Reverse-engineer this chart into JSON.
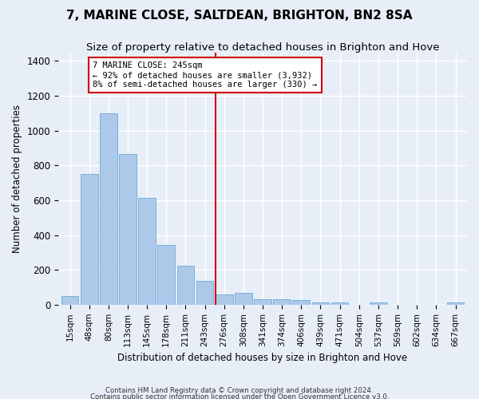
{
  "title": "7, MARINE CLOSE, SALTDEAN, BRIGHTON, BN2 8SA",
  "subtitle": "Size of property relative to detached houses in Brighton and Hove",
  "xlabel": "Distribution of detached houses by size in Brighton and Hove",
  "ylabel": "Number of detached properties",
  "footnote1": "Contains HM Land Registry data © Crown copyright and database right 2024.",
  "footnote2": "Contains public sector information licensed under the Open Government Licence v3.0.",
  "bar_labels": [
    "15sqm",
    "48sqm",
    "80sqm",
    "113sqm",
    "145sqm",
    "178sqm",
    "211sqm",
    "243sqm",
    "276sqm",
    "308sqm",
    "341sqm",
    "374sqm",
    "406sqm",
    "439sqm",
    "471sqm",
    "504sqm",
    "537sqm",
    "569sqm",
    "602sqm",
    "634sqm",
    "667sqm"
  ],
  "bar_values": [
    50,
    750,
    1100,
    865,
    615,
    345,
    225,
    135,
    60,
    70,
    30,
    30,
    25,
    15,
    15,
    0,
    12,
    0,
    0,
    0,
    12
  ],
  "bar_color": "#adc9ea",
  "bar_edge_color": "#6aaad4",
  "vline_x": 7.55,
  "vline_color": "#cc0000",
  "annotation_text": "7 MARINE CLOSE: 245sqm\n← 92% of detached houses are smaller (3,932)\n8% of semi-detached houses are larger (330) →",
  "annotation_box_color": "#ffffff",
  "annotation_box_edge": "#cc0000",
  "ylim": [
    0,
    1450
  ],
  "background_color": "#e8eef8",
  "plot_bg_color": "#e8eef8",
  "grid_color": "#ffffff",
  "title_fontsize": 11,
  "subtitle_fontsize": 9.5
}
